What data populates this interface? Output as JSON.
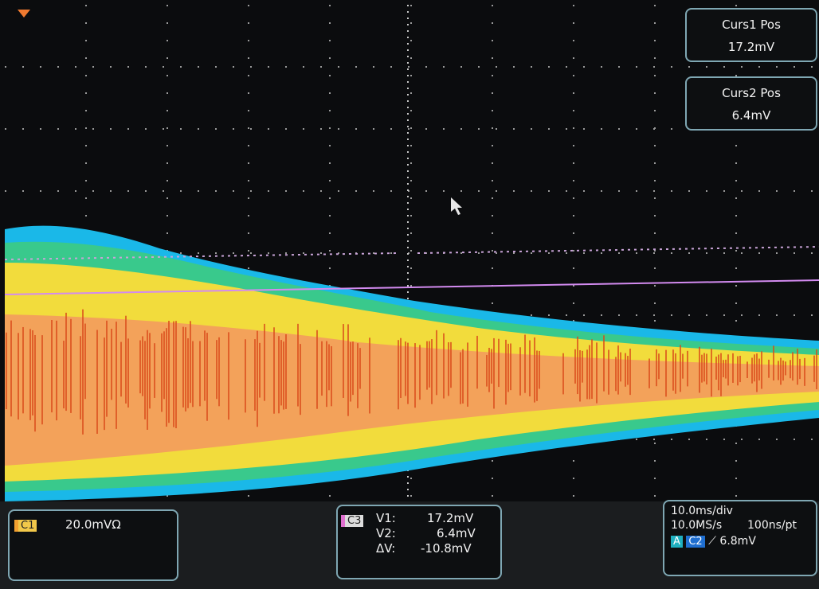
{
  "cursor_readouts": [
    {
      "label": "Curs1 Pos",
      "value": "17.2mV"
    },
    {
      "label": "Curs2 Pos",
      "value": "6.4mV"
    }
  ],
  "channel_panel": {
    "badge": "C1",
    "scale": "20.0mVΩ"
  },
  "cursor_panel": {
    "badge": "C3",
    "rows": [
      {
        "label": "V1:",
        "value": "17.2mV"
      },
      {
        "label": "V2:",
        "value": "6.4mV"
      },
      {
        "label": "ΔV:",
        "value": "-10.8mV"
      }
    ]
  },
  "timebase_panel": {
    "time_scale": "10.0ms/div",
    "sample_rate": "10.0MS/s",
    "resolution": "100ns/pt",
    "trigger_badge": "A",
    "trigger_source": "C2",
    "trigger_level": "6.8mV"
  }
}
